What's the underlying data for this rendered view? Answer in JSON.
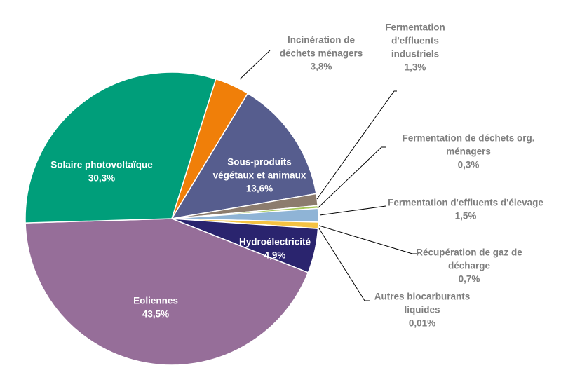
{
  "chart_data": {
    "type": "pie",
    "title": "",
    "slices": [
      {
        "key": "incineration",
        "label": "Incinération de déchets ménagers",
        "lines": [
          "Incinération de",
          "déchets ménagers"
        ],
        "pct_label": "3,8%",
        "value": 3.8,
        "color": "#F07F09",
        "label_color": "#7f7f7f"
      },
      {
        "key": "sous_produits",
        "label": "Sous-produits végétaux et animaux",
        "lines": [
          "Sous-produits",
          "végétaux et animaux"
        ],
        "pct_label": "13,6%",
        "value": 13.6,
        "color": "#565D8E",
        "label_color": "#ffffff"
      },
      {
        "key": "fermentation_industriels",
        "label": "Fermentation d'effluents industriels",
        "lines": [
          "Fermentation",
          "d'effluents",
          "industriels"
        ],
        "pct_label": "1,3%",
        "value": 1.3,
        "color": "#8C7C6E",
        "label_color": "#7f7f7f"
      },
      {
        "key": "fermentation_menagers",
        "label": "Fermentation de déchets org. ménagers",
        "lines": [
          "Fermentation de déchets org.",
          "ménagers"
        ],
        "pct_label": "0,3%",
        "value": 0.3,
        "color": "#A6C85A",
        "label_color": "#7f7f7f"
      },
      {
        "key": "fermentation_elevage",
        "label": "Fermentation d'effluents d'élevage",
        "lines": [
          "Fermentation d'effluents d'élevage"
        ],
        "pct_label": "1,5%",
        "value": 1.5,
        "color": "#8FB4D6",
        "label_color": "#7f7f7f"
      },
      {
        "key": "recuperation_gaz",
        "label": "Récupération de gaz de décharge",
        "lines": [
          "Récupération de gaz de",
          "décharge"
        ],
        "pct_label": "0,7%",
        "value": 0.7,
        "color": "#F5C242",
        "label_color": "#7f7f7f"
      },
      {
        "key": "autres_biocarburants",
        "label": "Autres biocarburants liquides",
        "lines": [
          "Autres biocarburants",
          "liquides"
        ],
        "pct_label": "0,01%",
        "value": 0.01,
        "color": "#7B3F1E",
        "label_color": "#7f7f7f"
      },
      {
        "key": "hydro",
        "label": "Hydroélectricité",
        "lines": [
          "Hydroélectricité"
        ],
        "pct_label": "4,9%",
        "value": 4.9,
        "color": "#2A246E",
        "label_color": "#ffffff"
      },
      {
        "key": "eoliennes",
        "label": "Eoliennes",
        "lines": [
          "Eoliennes"
        ],
        "pct_label": "43,5%",
        "value": 43.5,
        "color": "#966E99",
        "label_color": "#ffffff"
      },
      {
        "key": "solaire",
        "label": "Solaire photovoltaïque",
        "lines": [
          "Solaire photovoltaïque"
        ],
        "pct_label": "30,3%",
        "value": 30.3,
        "color": "#009E7A",
        "label_color": "#ffffff"
      }
    ]
  }
}
